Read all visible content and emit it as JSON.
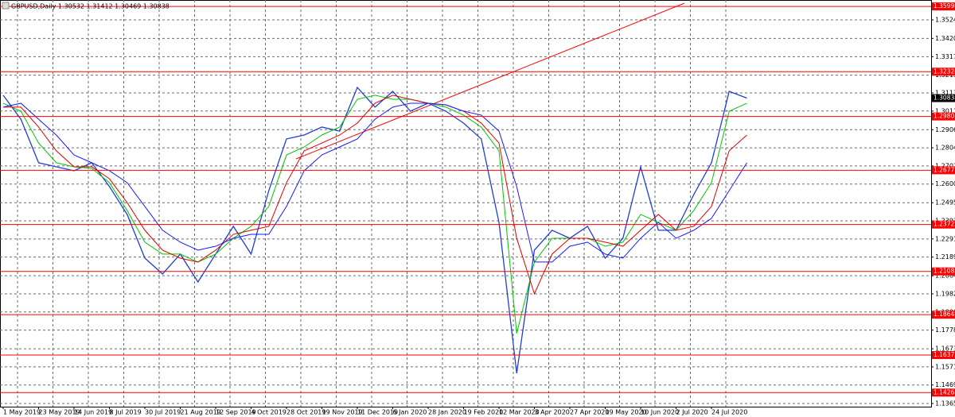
{
  "chart_data": {
    "type": "line",
    "title": "GBPUSD,Daily  1.30532 1.31412 1.30469 1.30838",
    "categories": [
      "1 May 2019",
      null,
      "23 May 2019",
      null,
      "14 Jun 2019",
      null,
      "8 Jul 2019",
      null,
      "30 Jul 2019",
      null,
      "21 Aug 2019",
      null,
      "12 Sep 2019",
      null,
      "4 Oct 2019",
      null,
      "28 Oct 2019",
      null,
      "19 Nov 2019",
      null,
      "11 Dec 2019",
      null,
      "6 Jan 2020",
      null,
      "28 Jan 2020",
      null,
      "19 Feb 2020",
      null,
      "12 Mar 2020",
      null,
      "3 Apr 2020",
      null,
      "27 Apr 2020",
      null,
      "19 May 2020",
      null,
      "10 Jun 2020",
      null,
      "2 Jul 2020",
      null,
      "24 Jul 2020",
      null,
      null
    ],
    "series": [
      {
        "color": "#1f3fd6",
        "values": [
          1.31,
          1.2965,
          1.272,
          1.2697,
          1.2675,
          1.272,
          1.2586,
          1.2429,
          1.2183,
          1.2094,
          1.2206,
          1.2049,
          1.2206,
          1.2362,
          1.2206,
          1.2563,
          1.2854,
          1.2876,
          1.2921,
          1.2898,
          1.3144,
          1.3033,
          1.3122,
          1.301,
          1.3055,
          1.301,
          1.2943,
          1.2854,
          1.2384,
          1.1535,
          1.2228,
          1.234,
          1.2295,
          1.2362,
          1.2183,
          1.2295,
          1.2697,
          1.234,
          1.234,
          1.2541,
          1.272,
          1.3122,
          1.30838
        ]
      },
      {
        "color": "#00c800",
        "values": [
          1.3055,
          1.301,
          1.2831,
          1.272,
          1.2697,
          1.2688,
          1.2608,
          1.2451,
          1.2273,
          1.2206,
          1.2206,
          1.2161,
          1.2206,
          1.2295,
          1.2362,
          1.2474,
          1.2764,
          1.2809,
          1.2876,
          1.2921,
          1.3077,
          1.31,
          1.3077,
          1.3077,
          1.3055,
          1.3033,
          1.2988,
          1.2921,
          1.2787,
          1.1759,
          1.2161,
          1.2295,
          1.2295,
          1.2295,
          1.225,
          1.2273,
          1.2429,
          1.2384,
          1.234,
          1.2451,
          1.2608,
          1.301,
          1.3055
        ]
      },
      {
        "color": "#e00000",
        "values": [
          1.3033,
          1.3033,
          1.2921,
          1.2787,
          1.2697,
          1.2697,
          1.263,
          1.2496,
          1.234,
          1.2228,
          1.2183,
          1.2161,
          1.2228,
          1.2317,
          1.234,
          1.2362,
          1.2608,
          1.2787,
          1.2831,
          1.2876,
          1.2943,
          1.3055,
          1.31,
          1.3077,
          1.3055,
          1.3046,
          1.301,
          1.2943,
          1.2831,
          1.2295,
          1.1982,
          1.2206,
          1.2295,
          1.2295,
          1.2273,
          1.225,
          1.234,
          1.2429,
          1.234,
          1.2362,
          1.2474,
          1.2787,
          1.2876
        ]
      },
      {
        "color": "#1a1aff",
        "values": [
          1.3033,
          1.3055,
          1.2965,
          1.2876,
          1.2764,
          1.272,
          1.2675,
          1.2608,
          1.2474,
          1.234,
          1.2273,
          1.2228,
          1.225,
          1.2295,
          1.2317,
          1.2317,
          1.2474,
          1.2675,
          1.2764,
          1.2809,
          1.2854,
          1.2965,
          1.3033,
          1.3055,
          1.3055,
          1.3046,
          1.301,
          1.2988,
          1.2898,
          1.2586,
          1.2161,
          1.2161,
          1.225,
          1.2273,
          1.2206,
          1.2183,
          1.2295,
          1.2384,
          1.2295,
          1.234,
          1.2407,
          1.2563,
          1.272
        ]
      }
    ],
    "ylim": [
      1.1347,
      1.3636
    ],
    "yticks": [
      {
        "value": 1.3524,
        "label": "1.35240"
      },
      {
        "value": 1.342,
        "label": "1.34200"
      },
      {
        "value": 1.3317,
        "label": "1.33170"
      },
      {
        "value": 1.3213,
        "label": "1.32130"
      },
      {
        "value": 1.3113,
        "label": "1.31130"
      },
      {
        "value": 1.3011,
        "label": "1.30110"
      },
      {
        "value": 1.2906,
        "label": "1.29060"
      },
      {
        "value": 1.2804,
        "label": "1.28040"
      },
      {
        "value": 1.2702,
        "label": "1.27020"
      },
      {
        "value": 1.26,
        "label": "1.26000"
      },
      {
        "value": 1.2495,
        "label": "1.24950"
      },
      {
        "value": 1.2393,
        "label": "1.23930"
      },
      {
        "value": 1.2291,
        "label": "1.22910"
      },
      {
        "value": 1.2189,
        "label": "1.21890"
      },
      {
        "value": 1.2084,
        "label": "1.20840"
      },
      {
        "value": 1.1982,
        "label": "1.19820"
      },
      {
        "value": 1.188,
        "label": "1.18800"
      },
      {
        "value": 1.1778,
        "label": "1.17780"
      },
      {
        "value": 1.1673,
        "label": "1.16730"
      },
      {
        "value": 1.1571,
        "label": "1.15710"
      },
      {
        "value": 1.1469,
        "label": "1.14690"
      },
      {
        "value": 1.1365,
        "label": "1.13650"
      }
    ],
    "levels": [
      1.35998,
      1.32324,
      1.29805,
      1.26777,
      1.23722,
      1.21083,
      1.18648,
      1.16375,
      1.14263
    ],
    "level_color": "#ff0000",
    "current_price": 1.30838,
    "grid": true
  }
}
